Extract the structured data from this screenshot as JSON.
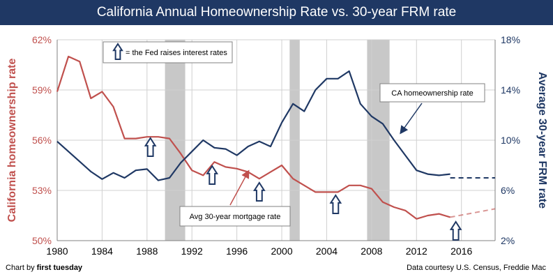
{
  "chart_data": {
    "type": "line",
    "title": "California Annual Homeownership Rate vs. 30-year FRM rate",
    "ylabel_left": "California homeownership rate",
    "ylabel_right": "Average 30-year FRM rate",
    "x_ticks": [
      "1980",
      "1984",
      "1988",
      "1992",
      "1996",
      "2000",
      "2004",
      "2008",
      "2012",
      "2016"
    ],
    "y_left_ticks": [
      "62%",
      "59%",
      "56%",
      "53%",
      "50%"
    ],
    "y_right_ticks": [
      "18%",
      "14%",
      "10%",
      "6%",
      "2%"
    ],
    "xlim": [
      1980,
      2019
    ],
    "ylim_left": [
      50,
      62
    ],
    "ylim_right": [
      2,
      18
    ],
    "grid": true,
    "colors": {
      "homeownership": "#c0504d",
      "mortgage": "#1f3864",
      "recession": "#c8c8c8",
      "title_bar": "#1f3864",
      "fed_arrow": "#1f3864"
    },
    "series": [
      {
        "axis": "left",
        "color": "#c0504d",
        "x": [
          1980,
          1981,
          1982,
          1983,
          1984,
          1985,
          1986,
          1987,
          1988,
          1989,
          1990,
          1991,
          1992,
          1993,
          1994,
          1995,
          1996,
          1997,
          1998,
          1999,
          2000,
          2001,
          2002,
          2003,
          2004,
          2005,
          2006,
          2007,
          2008,
          2009,
          2010,
          2011,
          2012,
          2013,
          2014,
          2015
        ],
        "values": [
          58.9,
          61.0,
          60.7,
          58.5,
          58.9,
          58.0,
          56.1,
          56.1,
          56.2,
          56.2,
          56.1,
          55.2,
          54.2,
          53.9,
          54.7,
          54.4,
          54.3,
          54.1,
          53.7,
          54.1,
          54.5,
          53.7,
          53.3,
          52.9,
          52.9,
          52.9,
          53.3,
          53.3,
          53.1,
          52.3,
          52.0,
          51.8,
          51.3,
          51.5,
          51.6,
          51.4
        ],
        "projection_x": [
          2015,
          2019
        ],
        "projection_values": [
          51.4,
          51.9
        ]
      },
      {
        "axis": "right",
        "color": "#1f3864",
        "x": [
          1980,
          1981,
          1982,
          1983,
          1984,
          1985,
          1986,
          1987,
          1988,
          1989,
          1990,
          1991,
          1992,
          1993,
          1994,
          1995,
          1996,
          1997,
          1998,
          1999,
          2000,
          2001,
          2002,
          2003,
          2004,
          2005,
          2006,
          2007,
          2008,
          2009,
          2010,
          2011,
          2012,
          2013,
          2014,
          2015
        ],
        "values": [
          9.9,
          9.1,
          8.3,
          7.5,
          6.9,
          7.4,
          7.0,
          7.6,
          7.7,
          6.8,
          7.0,
          8.2,
          9.1,
          10.0,
          9.4,
          9.3,
          8.8,
          9.5,
          9.9,
          9.5,
          11.4,
          12.9,
          12.3,
          14.0,
          14.9,
          14.9,
          15.5,
          12.9,
          11.9,
          11.3,
          10.0,
          8.8,
          7.6,
          7.3,
          7.2,
          7.3
        ],
        "projection_x": [
          2015,
          2019
        ],
        "projection_values": [
          7.0,
          7.0
        ]
      }
    ],
    "recessions": [
      [
        1989.6,
        1991.4
      ],
      [
        2000.7,
        2001.6
      ],
      [
        2007.6,
        2009.6
      ]
    ],
    "fed_raise_years": [
      1988.3,
      1993.8,
      1998.0,
      2004.8,
      2015.5
    ],
    "annotations": {
      "legend_note": "= the Fed raises interest rates",
      "ca_label": "CA homeownership rate",
      "frm_label": "Avg 30-year mortgage rate"
    },
    "footer_left_prefix": "Chart by",
    "footer_left_brand": "first tuesday",
    "footer_right": "Data courtesy U.S. Census, Freddie Mac"
  }
}
